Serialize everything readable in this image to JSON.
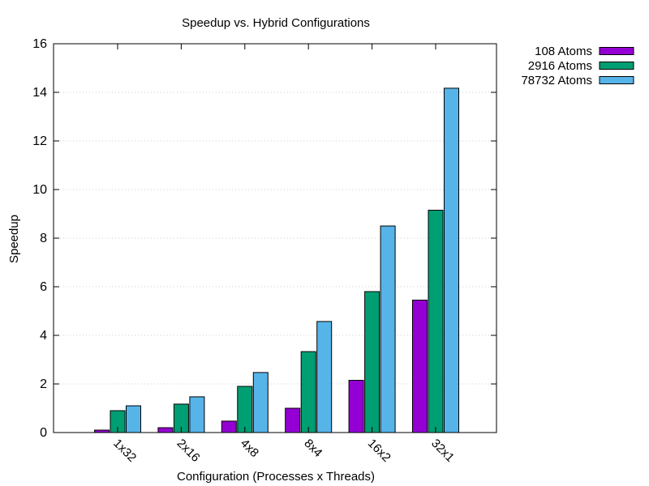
{
  "chart_data": {
    "type": "bar",
    "title": "Speedup vs. Hybrid Configurations",
    "xlabel": "Configuration (Processes x Threads)",
    "ylabel": "Speedup",
    "categories": [
      "1x32",
      "2x16",
      "4x8",
      "8x4",
      "16x2",
      "32x1"
    ],
    "series": [
      {
        "name": "108 Atoms",
        "color": "#9400d3",
        "values": [
          0.1,
          0.2,
          0.47,
          1.0,
          2.15,
          5.45
        ]
      },
      {
        "name": "2916 Atoms",
        "color": "#009e73",
        "values": [
          0.9,
          1.17,
          1.9,
          3.33,
          5.8,
          9.15
        ]
      },
      {
        "name": "78732 Atoms",
        "color": "#56b4e9",
        "values": [
          1.1,
          1.47,
          2.47,
          4.57,
          8.5,
          14.17
        ]
      }
    ],
    "ylim": [
      0,
      16
    ],
    "yticks": [
      0,
      2,
      4,
      6,
      8,
      10,
      12,
      14,
      16
    ],
    "grid": "horizontal-dotted",
    "legend": "outside-top-right"
  }
}
